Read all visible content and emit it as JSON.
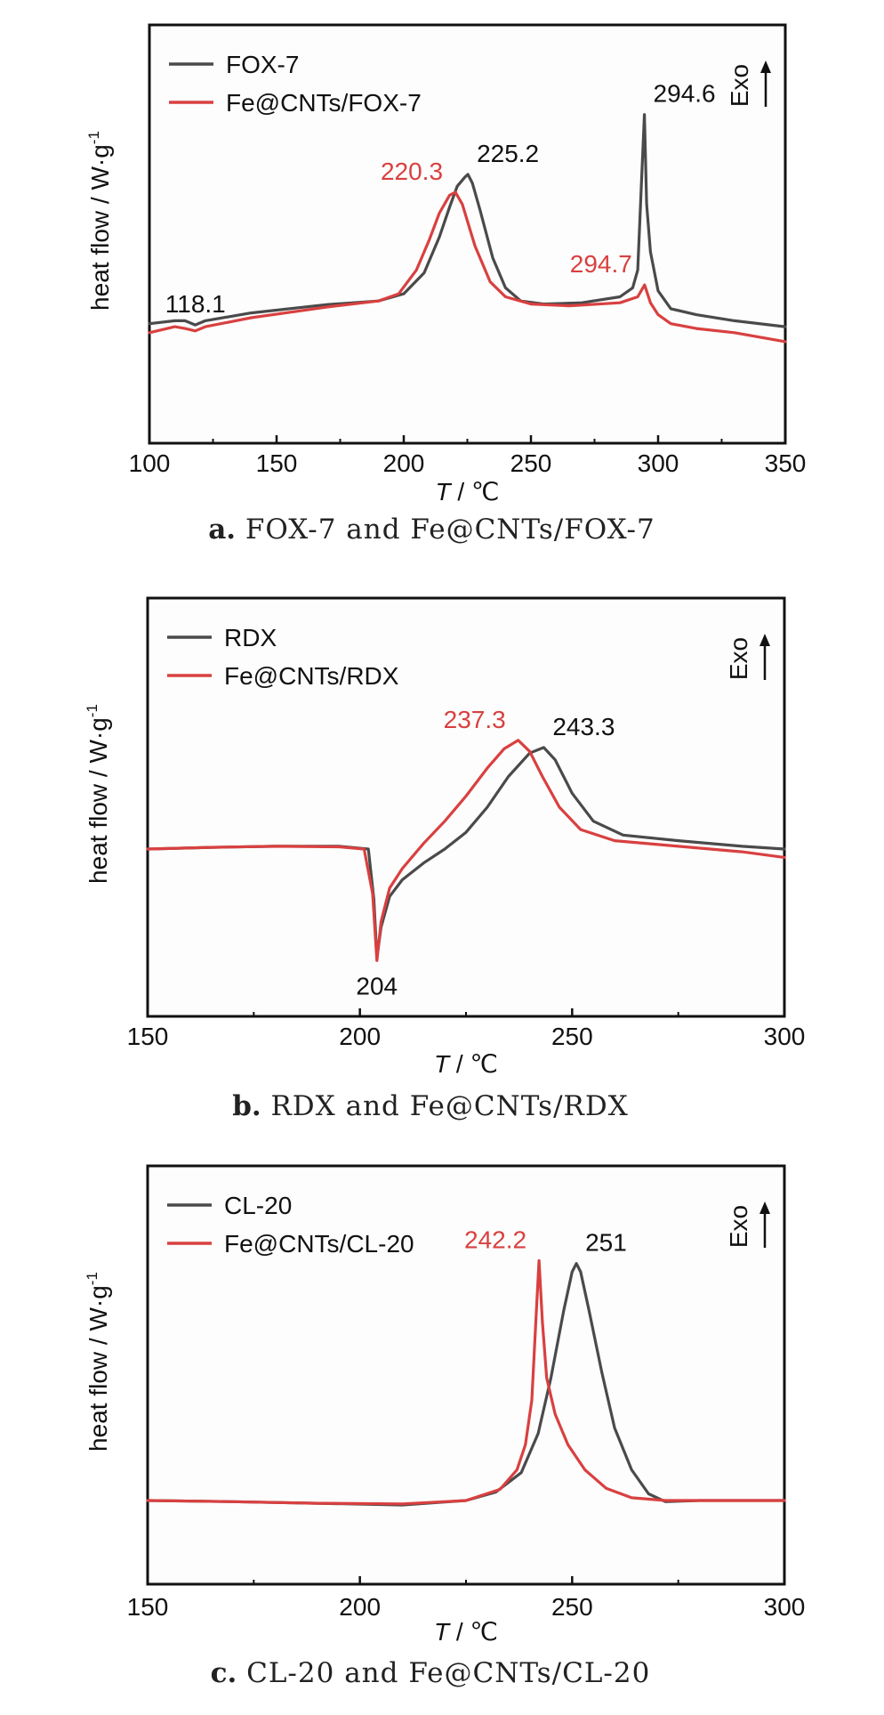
{
  "chart_data": [
    {
      "id": "a",
      "type": "line",
      "xlabel_italic": "T",
      "xlabel_rest": " / ℃",
      "ylabel": "heat flow / W·g",
      "ylabel_sup": "-1",
      "xlim": [
        100,
        350
      ],
      "ylim": [
        -2.0,
        5.0
      ],
      "xticks": [
        "100",
        "150",
        "200",
        "250",
        "300",
        "350"
      ],
      "tick_values": [
        100,
        150,
        200,
        250,
        300,
        350
      ],
      "exo_label": "Exo",
      "legend_position": "top-left",
      "series": [
        {
          "name": "FOX-7",
          "color": "#4a4a4a",
          "x": [
            100,
            110,
            114,
            118,
            122,
            140,
            170,
            190,
            200,
            208,
            214,
            218,
            221,
            224,
            225.2,
            227,
            230,
            235,
            240,
            246,
            255,
            270,
            285,
            290,
            292,
            293.5,
            294.6,
            295.5,
            297,
            300,
            305,
            315,
            330,
            350
          ],
          "y": [
            0.0,
            0.05,
            0.05,
            -0.02,
            0.05,
            0.18,
            0.32,
            0.38,
            0.5,
            0.85,
            1.45,
            1.95,
            2.3,
            2.45,
            2.5,
            2.35,
            1.9,
            1.1,
            0.6,
            0.38,
            0.33,
            0.35,
            0.45,
            0.6,
            0.9,
            2.4,
            3.5,
            2.0,
            1.2,
            0.55,
            0.25,
            0.15,
            0.05,
            -0.05
          ]
        },
        {
          "name": "Fe@CNTs/FOX-7",
          "color": "#d94040",
          "x": [
            100,
            110,
            114,
            118,
            122,
            140,
            170,
            190,
            198,
            205,
            210,
            214,
            218,
            220.3,
            223,
            228,
            234,
            240,
            250,
            265,
            285,
            292,
            294.7,
            297,
            300,
            305,
            315,
            330,
            350
          ],
          "y": [
            -0.15,
            -0.05,
            -0.08,
            -0.12,
            -0.05,
            0.1,
            0.28,
            0.38,
            0.5,
            0.9,
            1.4,
            1.85,
            2.15,
            2.2,
            2.0,
            1.3,
            0.7,
            0.45,
            0.33,
            0.3,
            0.35,
            0.45,
            0.65,
            0.35,
            0.15,
            0.0,
            -0.08,
            -0.15,
            -0.3
          ]
        }
      ],
      "annotations": [
        {
          "text": "118.1",
          "x": 118.1,
          "y": -0.02,
          "color": "#111111",
          "series": 0
        },
        {
          "text": "225.2",
          "x": 225.2,
          "y": 2.5,
          "color": "#111111",
          "series": 0
        },
        {
          "text": "294.6",
          "x": 294.6,
          "y": 3.5,
          "color": "#111111",
          "series": 0
        },
        {
          "text": "220.3",
          "x": 220.3,
          "y": 2.2,
          "color": "#d94040",
          "series": 1
        },
        {
          "text": "294.7",
          "x": 294.7,
          "y": 0.65,
          "color": "#d94040",
          "series": 1
        }
      ],
      "caption_letter": "a.",
      "caption": "FOX-7 and Fe@CNTs/FOX-7"
    },
    {
      "id": "b",
      "type": "line",
      "xlabel_italic": "T",
      "xlabel_rest": " / ℃",
      "ylabel": "heat flow / W·g",
      "ylabel_sup": "-1",
      "xlim": [
        150,
        300
      ],
      "ylim": [
        -3.0,
        4.5
      ],
      "xticks": [
        "150",
        "200",
        "250",
        "300"
      ],
      "tick_values": [
        150,
        200,
        250,
        300
      ],
      "exo_label": "Exo",
      "legend_position": "top-left",
      "series": [
        {
          "name": "RDX",
          "color": "#4a4a4a",
          "x": [
            150,
            165,
            180,
            195,
            202,
            203.3,
            204,
            205,
            207,
            210,
            215,
            220,
            225,
            230,
            235,
            240,
            243.3,
            246,
            250,
            255,
            262,
            275,
            290,
            300
          ],
          "y": [
            0.0,
            0.03,
            0.05,
            0.05,
            0.0,
            -0.9,
            -1.95,
            -1.4,
            -0.85,
            -0.55,
            -0.25,
            0.0,
            0.3,
            0.75,
            1.3,
            1.72,
            1.82,
            1.6,
            1.0,
            0.5,
            0.25,
            0.15,
            0.05,
            0.0
          ]
        },
        {
          "name": "Fe@CNTs/RDX",
          "color": "#d94040",
          "x": [
            150,
            165,
            180,
            195,
            201,
            203,
            204,
            205,
            207,
            210,
            215,
            220,
            225,
            230,
            234,
            237.3,
            240,
            243,
            247,
            252,
            260,
            275,
            290,
            300
          ],
          "y": [
            0.0,
            0.03,
            0.05,
            0.04,
            0.0,
            -0.8,
            -2.0,
            -1.3,
            -0.7,
            -0.35,
            0.1,
            0.5,
            0.95,
            1.45,
            1.8,
            1.95,
            1.75,
            1.3,
            0.75,
            0.35,
            0.15,
            0.05,
            -0.05,
            -0.15
          ]
        }
      ],
      "annotations": [
        {
          "text": "237.3",
          "x": 237.3,
          "y": 1.95,
          "color": "#d94040",
          "series": 1
        },
        {
          "text": "243.3",
          "x": 243.3,
          "y": 1.82,
          "color": "#111111",
          "series": 0
        },
        {
          "text": "204",
          "x": 204,
          "y": -2.0,
          "color": "#111111",
          "series": 1
        }
      ],
      "caption_letter": "b.",
      "caption": "RDX and Fe@CNTs/RDX"
    },
    {
      "id": "c",
      "type": "line",
      "xlabel_italic": "T",
      "xlabel_rest": " / ℃",
      "ylabel": "heat flow / W·g",
      "ylabel_sup": "-1",
      "xlim": [
        150,
        300
      ],
      "ylim": [
        -1.5,
        6.0
      ],
      "xticks": [
        "150",
        "200",
        "250",
        "300"
      ],
      "tick_values": [
        150,
        200,
        250,
        300
      ],
      "exo_label": "Exo",
      "legend_position": "top-left",
      "series": [
        {
          "name": "CL-20",
          "color": "#4a4a4a",
          "x": [
            150,
            170,
            190,
            210,
            225,
            232,
            238,
            242,
            245,
            248,
            250,
            251,
            252,
            254,
            257,
            260,
            264,
            268,
            272,
            280,
            300
          ],
          "y": [
            0.0,
            -0.02,
            -0.05,
            -0.08,
            0.0,
            0.15,
            0.5,
            1.2,
            2.2,
            3.4,
            4.1,
            4.25,
            4.1,
            3.4,
            2.3,
            1.3,
            0.55,
            0.12,
            -0.02,
            0.0,
            0.0
          ]
        },
        {
          "name": "Fe@CNTs/CL-20",
          "color": "#d94040",
          "x": [
            150,
            170,
            190,
            210,
            225,
            233,
            237,
            239,
            240.5,
            241.5,
            242.2,
            243,
            244,
            246,
            249,
            253,
            258,
            264,
            272,
            285,
            300
          ],
          "y": [
            0.0,
            -0.02,
            -0.05,
            -0.06,
            0.0,
            0.2,
            0.55,
            1.0,
            1.8,
            3.3,
            4.3,
            3.2,
            2.2,
            1.55,
            1.0,
            0.55,
            0.22,
            0.05,
            0.0,
            0.0,
            0.0
          ]
        }
      ],
      "annotations": [
        {
          "text": "242.2",
          "x": 242.2,
          "y": 4.3,
          "color": "#d94040",
          "series": 1
        },
        {
          "text": "251",
          "x": 251,
          "y": 4.25,
          "color": "#111111",
          "series": 0
        }
      ],
      "caption_letter": "c.",
      "caption": "CL-20 and Fe@CNTs/CL-20"
    }
  ]
}
